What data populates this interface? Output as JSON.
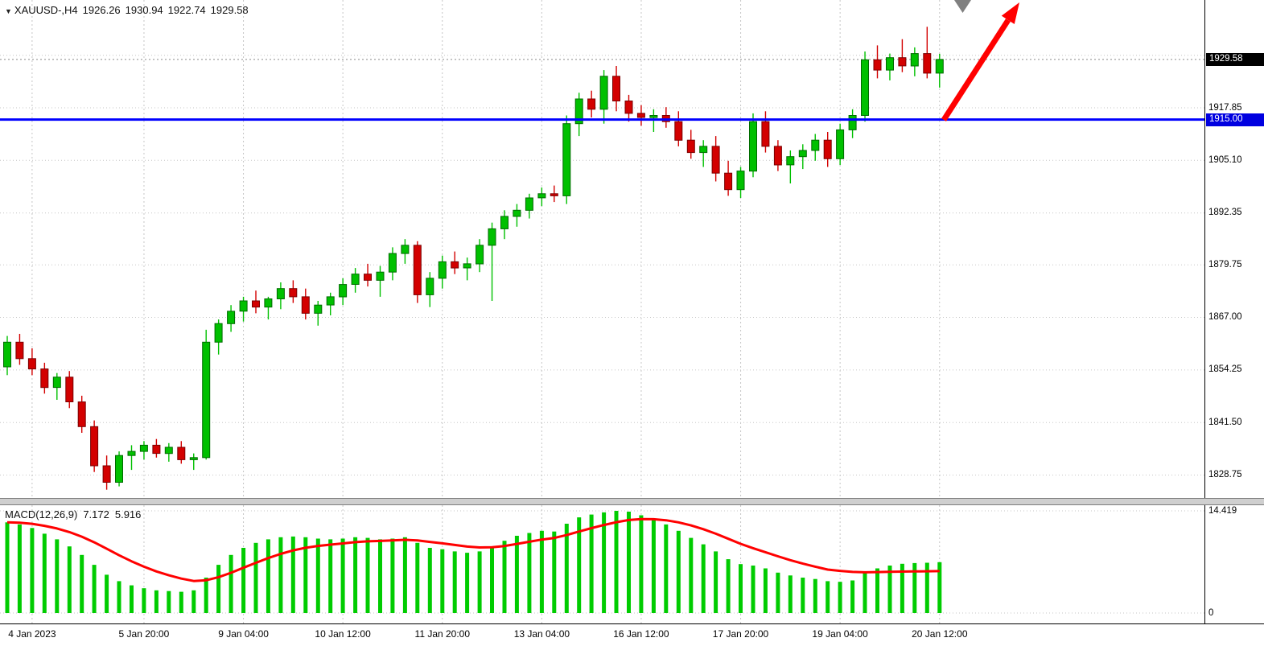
{
  "window": {
    "dropdown_icon": "▼",
    "symbol": "XAUUSD-,H4",
    "quote": {
      "open": "1926.26",
      "high": "1930.94",
      "low": "1922.74",
      "close": "1929.58"
    }
  },
  "colors": {
    "bull_fill": "#00c000",
    "bull_stroke": "#006a00",
    "bear_fill": "#d30000",
    "bear_stroke": "#7a0000",
    "hline": "#0000ff",
    "badge_current_bg": "#000000",
    "badge_line_bg": "#0000e0",
    "macd_bar": "#00cc00",
    "macd_signal": "#ff0000",
    "arrow": "#ff0000",
    "triangle_marker": "#808080"
  },
  "chart_data": [
    {
      "type": "candlestick",
      "title": "XAUUSD- H4 candlestick chart",
      "symbol": "XAUUSD-",
      "timeframe": "H4",
      "ylim": [
        1823,
        1944
      ],
      "grid_prices": [
        1930.6,
        1917.85,
        1905.1,
        1892.35,
        1879.75,
        1867.0,
        1854.25,
        1841.5,
        1828.75
      ],
      "y_ticks": [
        "1917.85",
        "1905.10",
        "1892.35",
        "1879.75",
        "1867.00",
        "1854.25",
        "1841.50",
        "1828.75"
      ],
      "current_price": 1929.58,
      "current_price_label": "1929.58",
      "hline_price": 1915.0,
      "hline_label": "1915.00",
      "time_labels": [
        {
          "i": 2,
          "t": "4 Jan 2023"
        },
        {
          "i": 11,
          "t": "5 Jan 20:00"
        },
        {
          "i": 19,
          "t": "9 Jan 04:00"
        },
        {
          "i": 27,
          "t": "10 Jan 12:00"
        },
        {
          "i": 35,
          "t": "11 Jan 20:00"
        },
        {
          "i": 43,
          "t": "13 Jan 04:00"
        },
        {
          "i": 51,
          "t": "16 Jan 12:00"
        },
        {
          "i": 59,
          "t": "17 Jan 20:00"
        },
        {
          "i": 67,
          "t": "19 Jan 04:00"
        },
        {
          "i": 75,
          "t": "20 Jan 12:00"
        }
      ],
      "candles": [
        [
          1855.0,
          1862.5,
          1853.0,
          1861.0
        ],
        [
          1861.0,
          1863.0,
          1855.5,
          1857.0
        ],
        [
          1857.0,
          1859.5,
          1853.0,
          1854.5
        ],
        [
          1854.5,
          1856.0,
          1848.5,
          1850.0
        ],
        [
          1850.0,
          1853.5,
          1847.0,
          1852.5
        ],
        [
          1852.5,
          1854.0,
          1845.0,
          1846.5
        ],
        [
          1846.5,
          1848.0,
          1839.0,
          1840.5
        ],
        [
          1840.5,
          1842.0,
          1829.5,
          1831.0
        ],
        [
          1831.0,
          1833.5,
          1825.2,
          1827.0
        ],
        [
          1827.0,
          1834.5,
          1826.0,
          1833.5
        ],
        [
          1833.5,
          1836.0,
          1830.0,
          1834.5
        ],
        [
          1834.5,
          1837.0,
          1832.5,
          1836.0
        ],
        [
          1836.0,
          1837.5,
          1833.0,
          1834.0
        ],
        [
          1834.0,
          1836.5,
          1832.0,
          1835.5
        ],
        [
          1835.5,
          1837.0,
          1831.5,
          1832.5
        ],
        [
          1832.5,
          1834.0,
          1830.0,
          1833.0
        ],
        [
          1833.0,
          1864.0,
          1832.5,
          1861.0
        ],
        [
          1861.0,
          1866.5,
          1858.0,
          1865.5
        ],
        [
          1865.5,
          1870.0,
          1863.5,
          1868.5
        ],
        [
          1868.5,
          1872.0,
          1866.0,
          1871.0
        ],
        [
          1871.0,
          1873.5,
          1868.0,
          1869.5
        ],
        [
          1869.5,
          1872.0,
          1866.5,
          1871.5
        ],
        [
          1871.5,
          1875.5,
          1869.0,
          1874.0
        ],
        [
          1874.0,
          1876.0,
          1870.5,
          1872.0
        ],
        [
          1872.0,
          1874.0,
          1866.5,
          1868.0
        ],
        [
          1868.0,
          1871.0,
          1865.0,
          1870.0
        ],
        [
          1870.0,
          1873.0,
          1867.5,
          1872.0
        ],
        [
          1872.0,
          1876.5,
          1870.0,
          1875.0
        ],
        [
          1875.0,
          1879.0,
          1873.0,
          1877.5
        ],
        [
          1877.5,
          1880.0,
          1874.5,
          1876.0
        ],
        [
          1876.0,
          1879.5,
          1872.0,
          1878.0
        ],
        [
          1878.0,
          1884.0,
          1876.0,
          1882.5
        ],
        [
          1882.5,
          1886.0,
          1880.0,
          1884.5
        ],
        [
          1884.5,
          1885.5,
          1870.5,
          1872.5
        ],
        [
          1872.5,
          1878.0,
          1869.5,
          1876.5
        ],
        [
          1876.5,
          1882.0,
          1874.0,
          1880.5
        ],
        [
          1880.5,
          1883.0,
          1877.5,
          1879.0
        ],
        [
          1879.0,
          1881.5,
          1876.0,
          1880.0
        ],
        [
          1880.0,
          1886.0,
          1878.0,
          1884.5
        ],
        [
          1884.5,
          1890.0,
          1871.0,
          1888.5
        ],
        [
          1888.5,
          1893.0,
          1886.0,
          1891.5
        ],
        [
          1891.5,
          1894.5,
          1889.0,
          1893.0
        ],
        [
          1893.0,
          1897.0,
          1891.0,
          1896.0
        ],
        [
          1896.0,
          1898.5,
          1894.0,
          1897.0
        ],
        [
          1897.0,
          1899.0,
          1895.0,
          1896.5
        ],
        [
          1896.5,
          1916.0,
          1894.5,
          1914.0
        ],
        [
          1914.0,
          1921.5,
          1911.0,
          1920.0
        ],
        [
          1920.0,
          1922.0,
          1915.5,
          1917.5
        ],
        [
          1917.5,
          1927.0,
          1914.0,
          1925.5
        ],
        [
          1925.5,
          1928.0,
          1917.0,
          1919.5
        ],
        [
          1919.5,
          1921.0,
          1914.5,
          1916.5
        ],
        [
          1916.5,
          1918.5,
          1913.5,
          1915.5
        ],
        [
          1915.5,
          1917.5,
          1912.0,
          1916.0
        ],
        [
          1916.0,
          1918.0,
          1913.0,
          1914.5
        ],
        [
          1914.5,
          1917.0,
          1908.5,
          1910.0
        ],
        [
          1910.0,
          1912.5,
          1905.5,
          1907.0
        ],
        [
          1907.0,
          1910.0,
          1903.5,
          1908.5
        ],
        [
          1908.5,
          1911.0,
          1900.0,
          1902.0
        ],
        [
          1902.0,
          1905.0,
          1896.5,
          1898.0
        ],
        [
          1898.0,
          1903.5,
          1896.0,
          1902.5
        ],
        [
          1902.5,
          1916.5,
          1901.0,
          1914.5
        ],
        [
          1914.5,
          1917.0,
          1907.0,
          1908.5
        ],
        [
          1908.5,
          1910.0,
          1902.5,
          1904.0
        ],
        [
          1904.0,
          1907.5,
          1899.5,
          1906.0
        ],
        [
          1906.0,
          1909.0,
          1903.0,
          1907.5
        ],
        [
          1907.5,
          1911.5,
          1905.0,
          1910.0
        ],
        [
          1910.0,
          1912.0,
          1903.5,
          1905.5
        ],
        [
          1905.5,
          1914.0,
          1904.0,
          1912.5
        ],
        [
          1912.5,
          1917.5,
          1910.5,
          1916.0
        ],
        [
          1916.0,
          1931.5,
          1914.5,
          1929.5
        ],
        [
          1929.5,
          1933.0,
          1925.0,
          1927.0
        ],
        [
          1927.0,
          1931.0,
          1924.5,
          1930.0
        ],
        [
          1930.0,
          1934.5,
          1926.5,
          1928.0
        ],
        [
          1928.0,
          1932.5,
          1925.5,
          1931.0
        ],
        [
          1931.0,
          1937.5,
          1925.0,
          1926.26
        ],
        [
          1926.26,
          1930.94,
          1922.74,
          1929.58
        ]
      ],
      "annotations": [
        {
          "name": "horizontal-line",
          "price": 1915.0,
          "color": "#0000ff"
        },
        {
          "name": "red-up-arrow",
          "color": "#ff0000"
        },
        {
          "name": "gray-triangle-marker",
          "color": "#808080"
        }
      ]
    },
    {
      "type": "bar",
      "name": "MACD(12,26,9)",
      "current_macd": "7.172",
      "current_signal": "5.916",
      "y_max_label": "14.419",
      "y_min_label": "0",
      "y_max": 14.419,
      "values": [
        12.8,
        12.5,
        12.0,
        11.2,
        10.4,
        9.4,
        8.2,
        6.8,
        5.4,
        4.5,
        3.9,
        3.5,
        3.2,
        3.1,
        3.0,
        3.2,
        5.0,
        6.8,
        8.2,
        9.2,
        9.9,
        10.4,
        10.7,
        10.8,
        10.7,
        10.5,
        10.4,
        10.5,
        10.7,
        10.6,
        10.4,
        10.5,
        10.7,
        9.9,
        9.2,
        9.0,
        8.7,
        8.5,
        8.7,
        9.4,
        10.2,
        10.9,
        11.3,
        11.6,
        11.5,
        12.6,
        13.5,
        13.9,
        14.2,
        14.419,
        14.3,
        13.8,
        13.2,
        12.5,
        11.6,
        10.6,
        9.7,
        8.7,
        7.6,
        6.9,
        6.7,
        6.3,
        5.7,
        5.3,
        5.0,
        4.8,
        4.5,
        4.4,
        4.6,
        5.7,
        6.3,
        6.7,
        6.95,
        7.05,
        7.1,
        7.172
      ],
      "signal": [
        12.8,
        12.74,
        12.59,
        12.31,
        11.93,
        11.42,
        10.78,
        9.98,
        9.07,
        8.15,
        7.3,
        6.54,
        5.87,
        5.32,
        4.86,
        4.52,
        4.62,
        5.06,
        5.68,
        6.39,
        7.09,
        7.75,
        8.34,
        8.83,
        9.21,
        9.47,
        9.65,
        9.82,
        10.0,
        10.12,
        10.17,
        10.24,
        10.33,
        10.25,
        10.04,
        9.83,
        9.6,
        9.38,
        9.25,
        9.28,
        9.46,
        9.75,
        10.06,
        10.37,
        10.59,
        11.0,
        11.5,
        11.98,
        12.42,
        12.82,
        13.12,
        13.25,
        13.24,
        13.09,
        12.8,
        12.36,
        11.83,
        11.2,
        10.48,
        9.76,
        9.15,
        8.58,
        8.0,
        7.46,
        6.97,
        6.54,
        6.13,
        5.95,
        5.8,
        5.75,
        5.78,
        5.82,
        5.85,
        5.87,
        5.89,
        5.916
      ]
    }
  ]
}
